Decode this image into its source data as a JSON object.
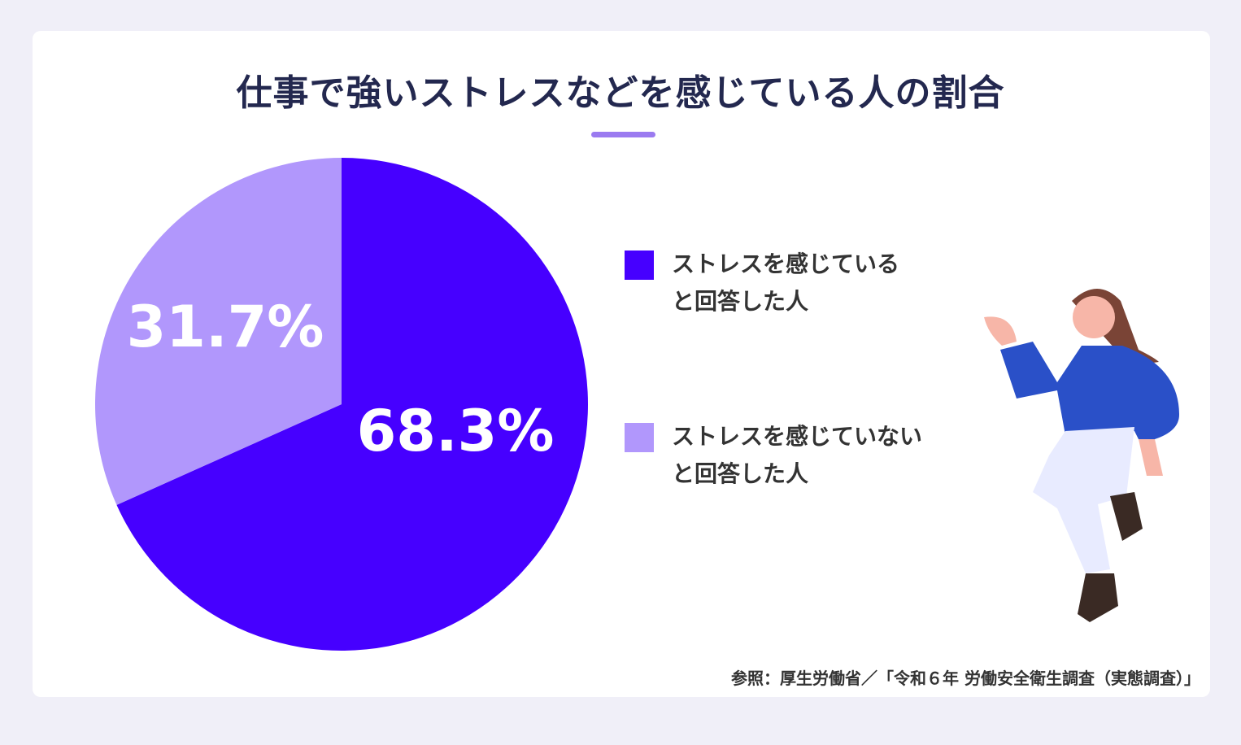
{
  "chart_data": {
    "type": "pie",
    "title": "仕事で強いストレスなどを感じている人の割合",
    "categories": [
      "ストレスを感じている\nと回答した人",
      "ストレスを感じていない\nと回答した人"
    ],
    "values": [
      68.3,
      31.7
    ],
    "value_labels": [
      "68.3%",
      "31.7%"
    ],
    "colors": [
      "#4600ff",
      "#b197fc"
    ],
    "source": "参照：厚生労働省／「令和６年 労働安全衛生調査（実態調査）」"
  }
}
